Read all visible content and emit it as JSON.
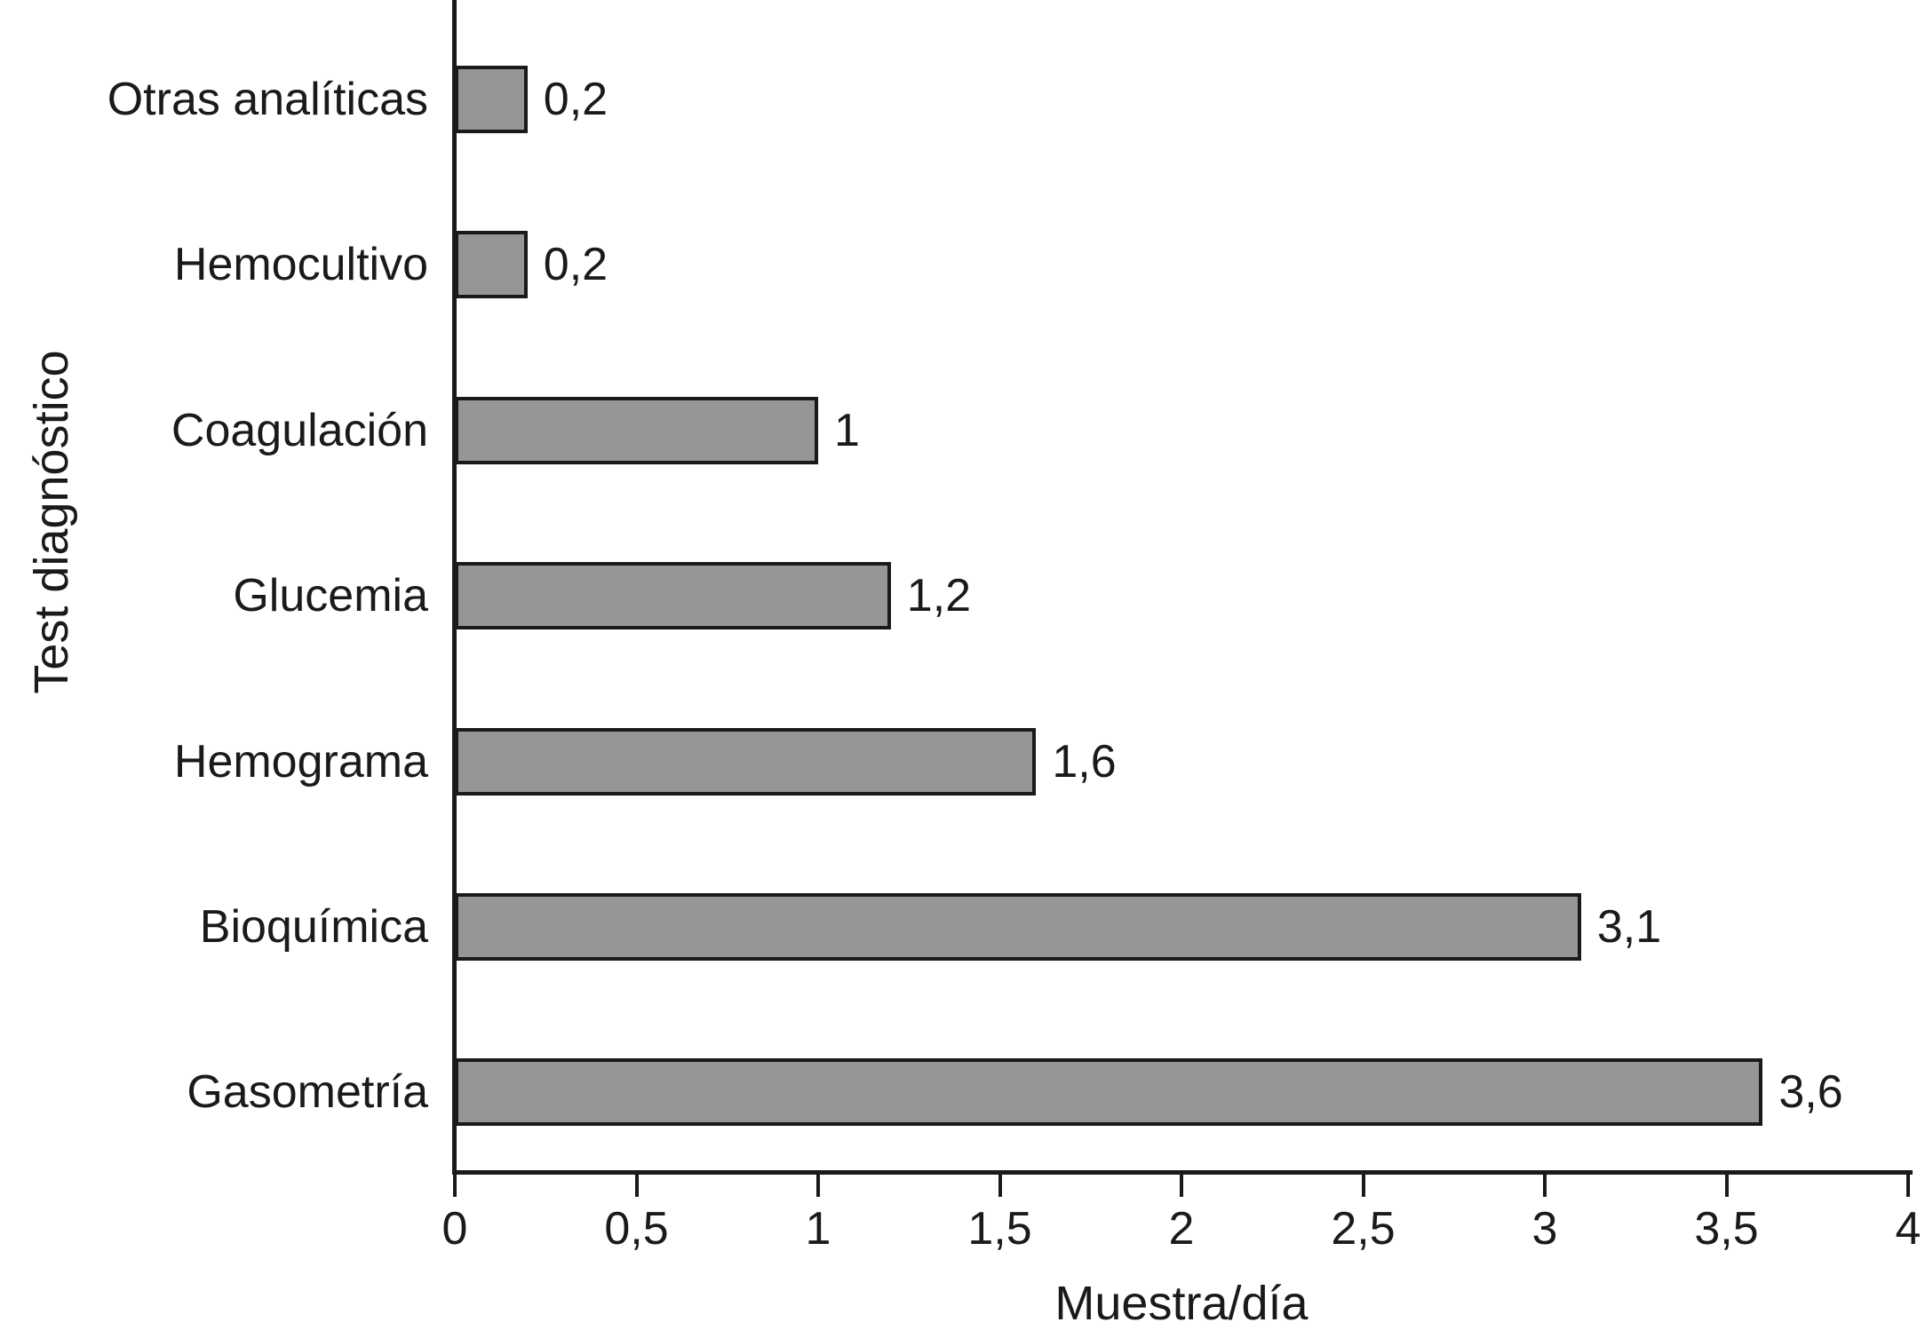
{
  "chart_data": {
    "type": "bar",
    "orientation": "horizontal",
    "categories": [
      "Otras analíticas",
      "Hemocultivo",
      "Coagulación",
      "Glucemia",
      "Hemograma",
      "Bioquímica",
      "Gasometría"
    ],
    "values": [
      0.2,
      0.2,
      1,
      1.2,
      1.6,
      3.1,
      3.6
    ],
    "value_labels": [
      "0,2",
      "0,2",
      "1",
      "1,2",
      "1,6",
      "3,1",
      "3,6"
    ],
    "xlabel": "Muestra/día",
    "ylabel": "Test diagnóstico",
    "xlim": [
      0,
      4
    ],
    "x_ticks": [
      0,
      0.5,
      1,
      1.5,
      2,
      2.5,
      3,
      3.5,
      4
    ],
    "x_tick_labels": [
      "0",
      "0,5",
      "1",
      "1,5",
      "2",
      "2,5",
      "3",
      "3,5",
      "4"
    ],
    "grid": false,
    "legend": null,
    "bar_color": "#969696",
    "bar_border_color": "#1a1a1a",
    "axis_color": "#1a1a1a",
    "text_color": "#1a1a1a",
    "background": "#ffffff"
  }
}
